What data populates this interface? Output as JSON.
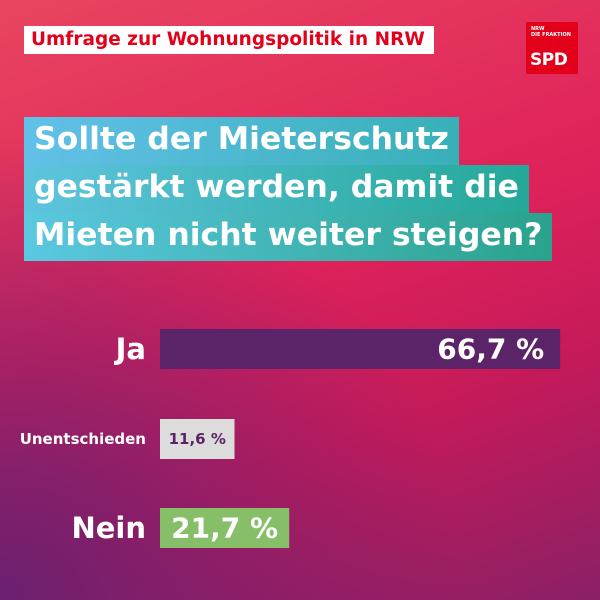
{
  "header": {
    "label": "Umfrage zur Wohnungspolitik in NRW"
  },
  "logo": {
    "subtitle": "NRW\nDIE FRAKTION",
    "name": "SPD"
  },
  "question": {
    "lines": [
      "Sollte der Mieterschutz",
      "gestärkt werden, damit die",
      "Mieten nicht weiter steigen?"
    ]
  },
  "chart_data": {
    "type": "bar",
    "orientation": "horizontal",
    "categories": [
      "Ja",
      "Unentschieden",
      "Nein"
    ],
    "values": [
      66.7,
      11.6,
      21.7
    ],
    "value_labels": [
      "66,7 %",
      "11,6 %",
      "21,7 %"
    ],
    "unit": "%",
    "colors": [
      "#5b2468",
      "#dcdcdc",
      "#86bf68"
    ],
    "value_label_colors": [
      "#ffffff",
      "#5b2468",
      "#ffffff"
    ]
  },
  "colors": {
    "brand_red": "#e3001b",
    "background_top": "#e8455f",
    "background_bottom": "#8a2066",
    "question_gradient_left": "#62c0e8",
    "question_gradient_right": "#24a898"
  }
}
